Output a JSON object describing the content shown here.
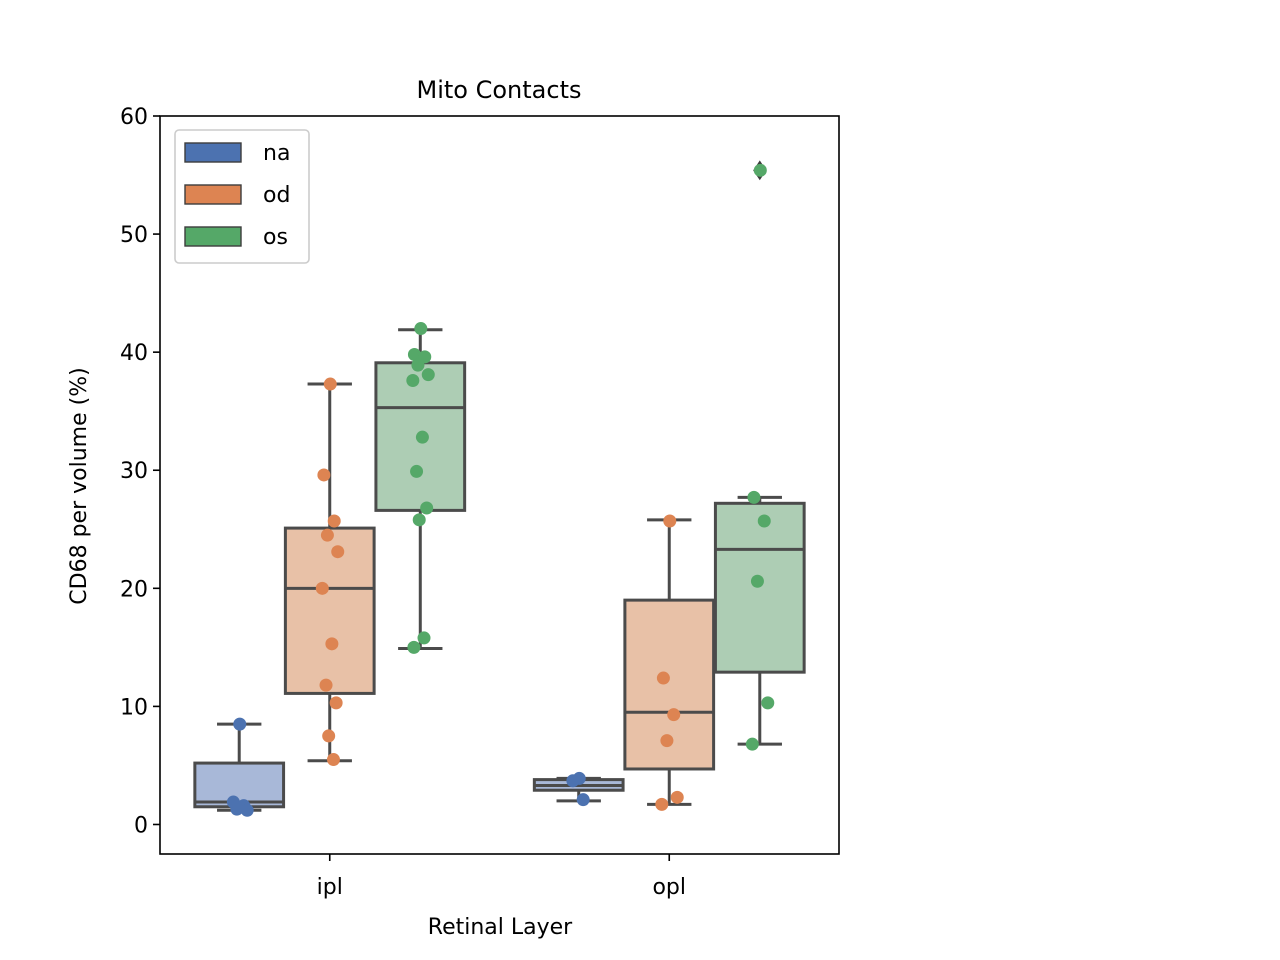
{
  "chart_data": {
    "type": "box",
    "title": "Mito Contacts",
    "xlabel": "Retinal Layer",
    "ylabel": "CD68 per volume (%)",
    "ylim": [
      -2.5,
      60
    ],
    "yticks": [
      0,
      10,
      20,
      30,
      40,
      50,
      60
    ],
    "categories": [
      "ipl",
      "opl"
    ],
    "legend_position": "upper-left",
    "grid": false,
    "series": [
      {
        "name": "na",
        "color": "#4c72b0",
        "box_color": "#a8b8d8",
        "boxes": [
          {
            "category": "ipl",
            "whisker_low": 1.2,
            "q1": 1.5,
            "median": 1.9,
            "q3": 5.2,
            "whisker_high": 8.5,
            "outliers": []
          },
          {
            "category": "opl",
            "whisker_low": 2.0,
            "q1": 2.9,
            "median": 3.3,
            "q3": 3.8,
            "whisker_high": 3.9,
            "outliers": []
          }
        ],
        "points": [
          {
            "category": "ipl",
            "values": [
              8.5,
              1.9,
              1.6,
              1.3,
              1.2
            ]
          },
          {
            "category": "opl",
            "values": [
              3.9,
              3.7,
              2.1
            ]
          }
        ]
      },
      {
        "name": "od",
        "color": "#dd8452",
        "box_color": "#e8c1a7",
        "boxes": [
          {
            "category": "ipl",
            "whisker_low": 5.4,
            "q1": 11.1,
            "median": 20.0,
            "q3": 25.1,
            "whisker_high": 37.3,
            "outliers": []
          },
          {
            "category": "opl",
            "whisker_low": 1.7,
            "q1": 4.7,
            "median": 9.5,
            "q3": 19.0,
            "whisker_high": 25.8,
            "outliers": []
          }
        ],
        "points": [
          {
            "category": "ipl",
            "values": [
              37.3,
              29.6,
              25.7,
              24.5,
              23.1,
              20.0,
              15.3,
              11.8,
              10.3,
              7.5,
              5.5
            ]
          },
          {
            "category": "opl",
            "values": [
              25.7,
              12.4,
              9.3,
              7.1,
              2.3,
              1.7
            ]
          }
        ]
      },
      {
        "name": "os",
        "color": "#55a868",
        "box_color": "#adcdb4",
        "boxes": [
          {
            "category": "ipl",
            "whisker_low": 14.9,
            "q1": 26.6,
            "median": 35.3,
            "q3": 39.1,
            "whisker_high": 41.9,
            "outliers": []
          },
          {
            "category": "opl",
            "whisker_low": 6.8,
            "q1": 12.9,
            "median": 23.3,
            "q3": 27.2,
            "whisker_high": 27.7,
            "outliers": [
              55.4
            ]
          }
        ],
        "points": [
          {
            "category": "ipl",
            "values": [
              42.0,
              39.8,
              39.6,
              38.9,
              38.1,
              37.6,
              32.8,
              29.9,
              26.8,
              25.8,
              15.8,
              15.0
            ]
          },
          {
            "category": "opl",
            "values": [
              55.4,
              27.7,
              25.7,
              20.6,
              10.3,
              6.8
            ]
          }
        ]
      }
    ]
  }
}
